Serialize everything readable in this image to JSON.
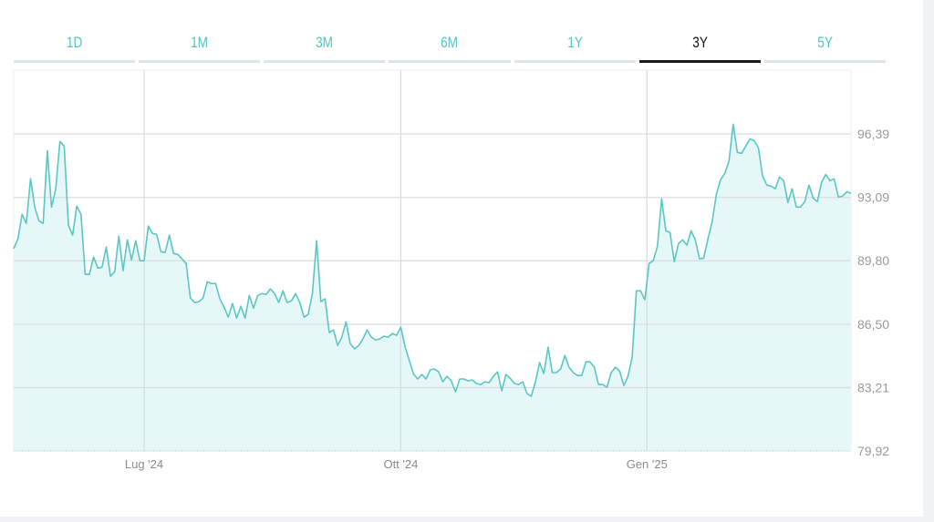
{
  "tabs": [
    {
      "label": "1D"
    },
    {
      "label": "1M"
    },
    {
      "label": "3M"
    },
    {
      "label": "6M"
    },
    {
      "label": "1Y"
    },
    {
      "label": "3Y",
      "active": true
    },
    {
      "label": "5Y"
    }
  ],
  "colors": {
    "line": "#5cc6c4",
    "fill": "#e5f7f7",
    "accent": "#52c4c6",
    "active_tab": "#1a1a1a"
  },
  "chart_data": {
    "type": "area",
    "title": "",
    "xlabel": "",
    "ylabel": "",
    "ylim": [
      79.92,
      99.0
    ],
    "y_ticks": [
      "79,92",
      "83,21",
      "86,50",
      "89,80",
      "93,09",
      "96,39"
    ],
    "y_tick_values": [
      79.92,
      83.21,
      86.5,
      89.8,
      93.09,
      96.39
    ],
    "x_ticks": [
      {
        "label": "Lug '24",
        "index": 31
      },
      {
        "label": "Ott '24",
        "index": 92
      },
      {
        "label": "Gen '25",
        "index": 150.5
      }
    ],
    "grid": true,
    "values": [
      90.42,
      90.94,
      92.21,
      91.74,
      94.06,
      92.59,
      91.88,
      91.74,
      95.52,
      92.59,
      93.54,
      96.0,
      95.76,
      91.65,
      91.13,
      92.64,
      92.21,
      89.09,
      89.09,
      89.99,
      89.42,
      89.47,
      90.51,
      89.0,
      89.23,
      91.08,
      89.28,
      90.89,
      89.85,
      90.84,
      89.8,
      89.8,
      91.6,
      91.22,
      91.17,
      90.27,
      90.23,
      91.13,
      90.18,
      90.13,
      89.9,
      89.66,
      87.86,
      87.63,
      87.67,
      87.86,
      88.71,
      88.62,
      88.62,
      87.82,
      87.39,
      86.87,
      87.58,
      86.82,
      87.44,
      86.82,
      88.0,
      87.34,
      88.0,
      88.1,
      88.05,
      88.34,
      88.1,
      87.63,
      88.24,
      87.63,
      87.72,
      88.1,
      87.63,
      86.87,
      87.01,
      88.1,
      90.84,
      87.67,
      87.82,
      86.07,
      86.21,
      85.4,
      85.83,
      86.63,
      85.5,
      85.22,
      85.4,
      85.74,
      86.21,
      85.83,
      85.69,
      85.74,
      85.88,
      85.83,
      86.02,
      85.92,
      86.35,
      85.36,
      84.65,
      83.94,
      83.66,
      83.89,
      83.66,
      84.13,
      84.18,
      84.03,
      83.51,
      83.8,
      83.56,
      82.99,
      83.66,
      83.66,
      83.56,
      83.61,
      83.42,
      83.37,
      83.51,
      83.47,
      83.8,
      84.03,
      83.04,
      83.89,
      83.7,
      83.42,
      83.37,
      83.51,
      82.9,
      82.76,
      83.51,
      84.51,
      83.94,
      85.31,
      83.99,
      83.99,
      84.18,
      84.88,
      84.27,
      83.99,
      83.84,
      83.84,
      84.55,
      84.55,
      84.27,
      83.37,
      83.37,
      83.23,
      83.99,
      84.27,
      84.08,
      83.32,
      83.8,
      84.79,
      88.24,
      88.24,
      87.77,
      89.66,
      89.8,
      90.56,
      93.02,
      91.36,
      91.27,
      89.75,
      90.7,
      90.89,
      90.61,
      91.36,
      90.89,
      89.9,
      89.94,
      90.94,
      91.83,
      93.25,
      94.01,
      94.34,
      94.96,
      96.89,
      95.43,
      95.38,
      95.76,
      96.14,
      96.04,
      95.66,
      94.2,
      93.73,
      93.68,
      93.54,
      94.15,
      93.96,
      92.83,
      93.54,
      92.59,
      92.59,
      92.87,
      93.73,
      93.06,
      92.87,
      93.87,
      94.29,
      93.96,
      94.06,
      93.11,
      93.16,
      93.39,
      93.3
    ]
  }
}
